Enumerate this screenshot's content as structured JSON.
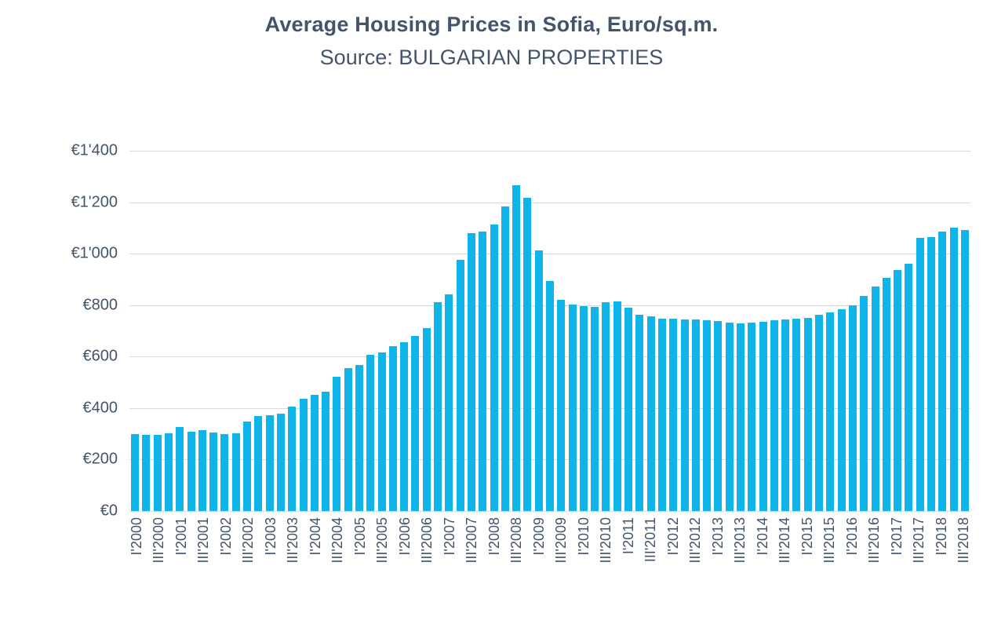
{
  "page": {
    "background": "#ffffff"
  },
  "chart_data": {
    "type": "bar",
    "title": "Average Housing Prices in Sofia, Euro/sq.m.",
    "subtitle": "Source: BULGARIAN PROPERTIES",
    "bar_color": "#0FB5E9",
    "grid_color": "#D9D9D9",
    "text_color": "#44546A",
    "legend": "none",
    "grid": "horizontal",
    "ylabel": "",
    "xlabel": "",
    "ylim": [
      0,
      1400
    ],
    "ytick_step": 200,
    "ytick_labels": [
      "€1'400",
      "€1'200",
      "€1'000",
      "€800",
      "€600",
      "€400",
      "€200",
      "€0"
    ],
    "xtick_every": 2,
    "categories": [
      "I'2000",
      "II'2000",
      "III'2000",
      "IV'2000",
      "I'2001",
      "II'2001",
      "III'2001",
      "IV'2001",
      "I'2002",
      "II'2002",
      "III'2002",
      "IV'2002",
      "I'2003",
      "II'2003",
      "III'2003",
      "IV'2003",
      "I'2004",
      "II'2004",
      "III'2004",
      "IV'2004",
      "I'2005",
      "II'2005",
      "III'2005",
      "IV'2005",
      "I'2006",
      "II'2006",
      "III'2006",
      "IV'2006",
      "I'2007",
      "II'2007",
      "III'2007",
      "IV'2007",
      "I'2008",
      "II'2008",
      "III'2008",
      "IV'2008",
      "I'2009",
      "II'2009",
      "III'2009",
      "IV'2009",
      "I'2010",
      "II'2010",
      "III'2010",
      "IV'2010",
      "I'2011",
      "II'2011",
      "III'2011",
      "IV'2011",
      "I'2012",
      "II'2012",
      "III'2012",
      "IV'2012",
      "I'2013",
      "II'2013",
      "III'2013",
      "IV'2013",
      "I'2014",
      "II'2014",
      "III'2014",
      "IV'2014",
      "I'2015",
      "II'2015",
      "III'2015",
      "IV'2015",
      "I'2016",
      "II'2016",
      "III'2016",
      "IV'2016",
      "I'2017",
      "II'2017",
      "III'2017",
      "IV'2017",
      "I'2018",
      "II'2018",
      "III'2018"
    ],
    "values": [
      300,
      297,
      295,
      301,
      326,
      308,
      313,
      304,
      298,
      302,
      348,
      368,
      372,
      377,
      407,
      437,
      452,
      463,
      521,
      556,
      567,
      607,
      617,
      642,
      657,
      681,
      712,
      812,
      843,
      975,
      1081,
      1087,
      1113,
      1185,
      1266,
      1216,
      1014,
      895,
      822,
      801,
      797,
      794,
      812,
      816,
      791,
      764,
      756,
      748,
      747,
      743,
      745,
      742,
      738,
      733,
      730,
      733,
      736,
      741,
      744,
      746,
      752,
      762,
      772,
      783,
      800,
      836,
      871,
      906,
      936,
      961,
      1061,
      1066,
      1086,
      1101,
      1093
    ]
  }
}
